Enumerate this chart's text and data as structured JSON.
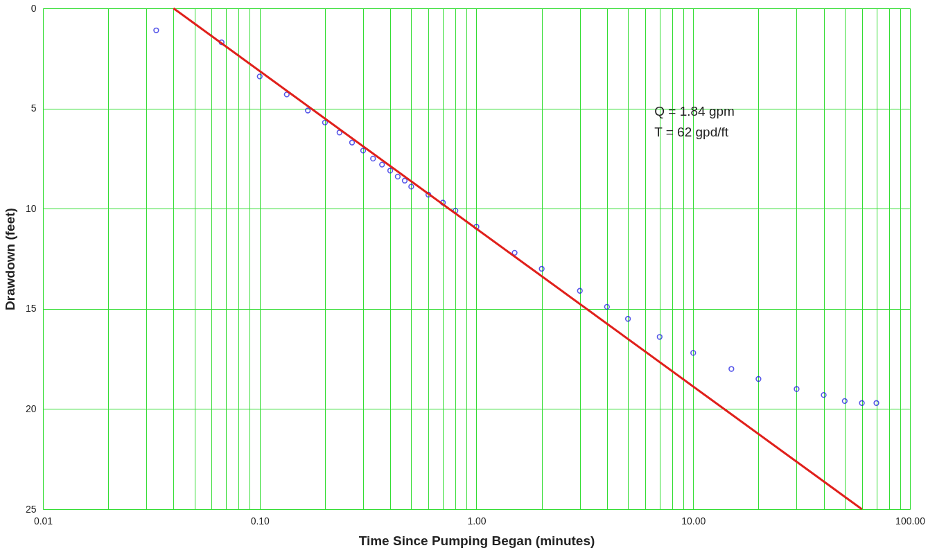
{
  "chart_data": {
    "type": "scatter",
    "xlabel": "Time Since Pumping Began (minutes)",
    "ylabel": "Drawdown (feet)",
    "log": "x",
    "grid": true,
    "xlim": [
      0.01,
      100
    ],
    "ylim": [
      25,
      0
    ],
    "xticks": [
      {
        "value": 0.01,
        "label": "0.01"
      },
      {
        "value": 0.02,
        "label": null
      },
      {
        "value": 0.03,
        "label": null
      },
      {
        "value": 0.04,
        "label": null
      },
      {
        "value": 0.05,
        "label": null
      },
      {
        "value": 0.06,
        "label": null
      },
      {
        "value": 0.07,
        "label": null
      },
      {
        "value": 0.08,
        "label": null
      },
      {
        "value": 0.09,
        "label": null
      },
      {
        "value": 0.1,
        "label": "0.10"
      },
      {
        "value": 0.2,
        "label": null
      },
      {
        "value": 0.3,
        "label": null
      },
      {
        "value": 0.4,
        "label": null
      },
      {
        "value": 0.5,
        "label": null
      },
      {
        "value": 0.6,
        "label": null
      },
      {
        "value": 0.7,
        "label": null
      },
      {
        "value": 0.8,
        "label": null
      },
      {
        "value": 0.9,
        "label": null
      },
      {
        "value": 1,
        "label": "1.00"
      },
      {
        "value": 2,
        "label": null
      },
      {
        "value": 3,
        "label": null
      },
      {
        "value": 4,
        "label": null
      },
      {
        "value": 5,
        "label": null
      },
      {
        "value": 6,
        "label": null
      },
      {
        "value": 7,
        "label": null
      },
      {
        "value": 8,
        "label": null
      },
      {
        "value": 9,
        "label": null
      },
      {
        "value": 10,
        "label": "10.00"
      },
      {
        "value": 20,
        "label": null
      },
      {
        "value": 30,
        "label": null
      },
      {
        "value": 40,
        "label": null
      },
      {
        "value": 50,
        "label": null
      },
      {
        "value": 60,
        "label": null
      },
      {
        "value": 70,
        "label": null
      },
      {
        "value": 80,
        "label": null
      },
      {
        "value": 90,
        "label": null
      },
      {
        "value": 100,
        "label": "100.00"
      }
    ],
    "yticks": [
      0,
      5,
      10,
      15,
      20,
      25
    ],
    "annotations": [
      "Q = 1.84 gpm",
      "T = 62 gpd/ft"
    ],
    "series": [
      {
        "type": "scatter",
        "marker": "circle",
        "color": "#1010e0",
        "x": [
          0.0333,
          0.0667,
          0.1,
          0.1333,
          0.1667,
          0.2,
          0.2333,
          0.2667,
          0.3,
          0.3333,
          0.3667,
          0.4,
          0.4333,
          0.4667,
          0.5,
          0.6,
          0.7,
          0.8,
          1.0,
          1.5,
          2,
          3,
          4,
          5,
          7,
          10,
          15,
          20,
          30,
          40,
          50,
          60,
          70
        ],
        "values": [
          1.1,
          1.7,
          3.4,
          4.3,
          5.1,
          5.7,
          6.2,
          6.7,
          7.1,
          7.5,
          7.8,
          8.1,
          8.4,
          8.6,
          8.9,
          9.3,
          9.7,
          10.1,
          10.9,
          12.2,
          13.0,
          14.1,
          14.9,
          15.5,
          16.4,
          17.2,
          18.0,
          18.5,
          19.0,
          19.3,
          19.6,
          19.7,
          19.7
        ]
      },
      {
        "type": "line",
        "marker": "none",
        "line_style": "solid",
        "color": "#e0201b",
        "x": [
          0.04,
          60
        ],
        "values": [
          0,
          25
        ]
      }
    ]
  }
}
